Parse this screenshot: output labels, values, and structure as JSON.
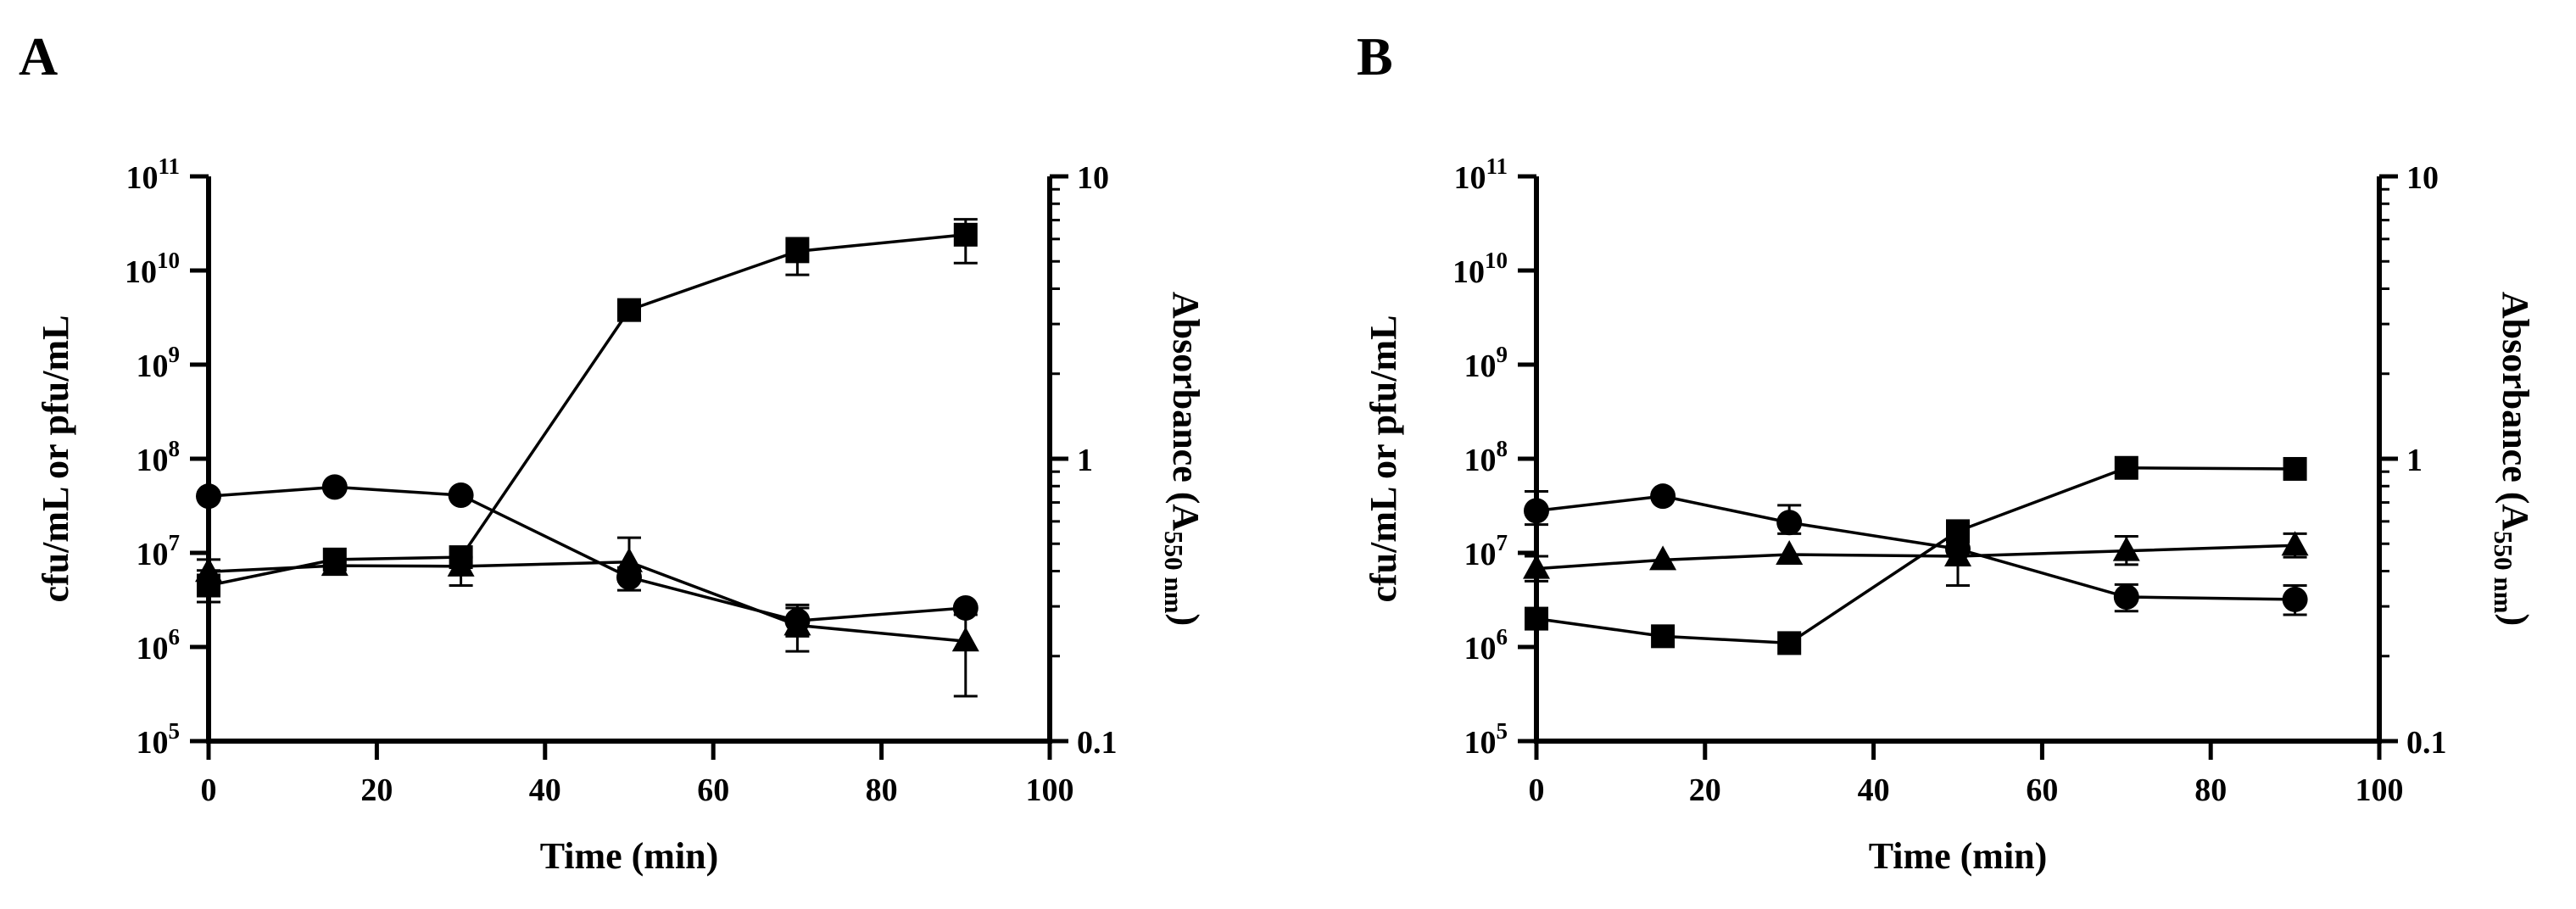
{
  "figure": {
    "panels": [
      "A",
      "B"
    ]
  },
  "chart_data": [
    {
      "type": "line",
      "panel_label": "A",
      "xlabel": "Time (min)",
      "ylabel": "cfu/mL or pfu/mL",
      "y2label": {
        "text": "Absorbance (",
        "sub": "A",
        "sub2": "550 nm",
        "close": ")"
      },
      "xlim": [
        0,
        100
      ],
      "xticks": [
        "0",
        "20",
        "40",
        "60",
        "80",
        "100"
      ],
      "ylim_log10": [
        5,
        11
      ],
      "yticks": [
        {
          "base": "10",
          "exp": "5"
        },
        {
          "base": "10",
          "exp": "6"
        },
        {
          "base": "10",
          "exp": "7"
        },
        {
          "base": "10",
          "exp": "8"
        },
        {
          "base": "10",
          "exp": "9"
        },
        {
          "base": "10",
          "exp": "10"
        },
        {
          "base": "10",
          "exp": "11"
        }
      ],
      "y2lim": [
        0.1,
        10
      ],
      "y2ticks": [
        "0.1",
        "1",
        "10"
      ],
      "series": [
        {
          "marker": "square",
          "axis": "left",
          "x": [
            0,
            15,
            30,
            50,
            70,
            90
          ],
          "y": [
            4500000.0,
            8500000.0,
            9000000.0,
            3800000000.0,
            16000000000.0,
            24000000000.0
          ],
          "err": [
            [
              3000000.0,
              6500000.0
            ],
            null,
            null,
            [
              3000000000.0,
              4600000000.0
            ],
            [
              9000000000.0,
              22000000000.0
            ],
            [
              12000000000.0,
              35000000000.0
            ]
          ]
        },
        {
          "marker": "circle",
          "axis": "left",
          "x": [
            0,
            15,
            30,
            50,
            70,
            90
          ],
          "y": [
            40000000.0,
            50000000.0,
            41000000.0,
            5500000.0,
            1900000.0,
            2600000.0
          ],
          "err": [
            null,
            null,
            null,
            [
              4000000.0,
              7000000.0
            ],
            [
              1300000.0,
              2800000.0
            ],
            null
          ]
        },
        {
          "marker": "triangle",
          "axis": "left",
          "x": [
            0,
            15,
            30,
            50,
            70,
            90
          ],
          "y": [
            6300000.0,
            7300000.0,
            7200000.0,
            8000000.0,
            1700000.0,
            1150000.0
          ],
          "err": [
            [
              4300000.0,
              8500000.0
            ],
            null,
            [
              4500000.0,
              9000000.0
            ],
            [
              5000000.0,
              14500000.0
            ],
            [
              900000.0,
              2600000.0
            ],
            [
              300000.0,
              2200000.0
            ]
          ]
        }
      ]
    },
    {
      "type": "line",
      "panel_label": "B",
      "xlabel": "Time (min)",
      "ylabel": "cfu/mL or pfu/mL",
      "y2label": {
        "text": "Absorbance (",
        "sub": "A",
        "sub2": "550 nm",
        "close": ")"
      },
      "xlim": [
        0,
        100
      ],
      "xticks": [
        "0",
        "20",
        "40",
        "60",
        "80",
        "100"
      ],
      "ylim_log10": [
        5,
        11
      ],
      "yticks": [
        {
          "base": "10",
          "exp": "5"
        },
        {
          "base": "10",
          "exp": "6"
        },
        {
          "base": "10",
          "exp": "7"
        },
        {
          "base": "10",
          "exp": "8"
        },
        {
          "base": "10",
          "exp": "9"
        },
        {
          "base": "10",
          "exp": "10"
        },
        {
          "base": "10",
          "exp": "11"
        }
      ],
      "y2lim": [
        0.1,
        10
      ],
      "y2ticks": [
        "0.1",
        "1",
        "10"
      ],
      "series": [
        {
          "marker": "square",
          "axis": "left",
          "x": [
            0,
            15,
            30,
            50,
            70,
            90
          ],
          "y": [
            2000000.0,
            1300000.0,
            1100000.0,
            17000000.0,
            80000000.0,
            78000000.0
          ],
          "err": [
            null,
            null,
            null,
            [
              13000000.0,
              22000000.0
            ],
            null,
            null
          ]
        },
        {
          "marker": "circle",
          "axis": "left",
          "x": [
            0,
            15,
            30,
            50,
            70,
            90
          ],
          "y": [
            28000000.0,
            40000000.0,
            21000000.0,
            11000000.0,
            3400000.0,
            3200000.0
          ],
          "err": [
            [
              20000000.0,
              45000000.0
            ],
            null,
            [
              16000000.0,
              32000000.0
            ],
            null,
            [
              2400000.0,
              4600000.0
            ],
            [
              2200000.0,
              4500000.0
            ]
          ]
        },
        {
          "marker": "triangle",
          "axis": "left",
          "x": [
            0,
            15,
            30,
            50,
            70,
            90
          ],
          "y": [
            6800000.0,
            8400000.0,
            9600000.0,
            9200000.0,
            10500000.0,
            12000000.0
          ],
          "err": [
            [
              5000000.0,
              9200000.0
            ],
            null,
            null,
            [
              4500000.0,
              15000000.0
            ],
            [
              7500000.0,
              15000000.0
            ],
            [
              9000000.0,
              16000000.0
            ]
          ]
        }
      ]
    }
  ]
}
